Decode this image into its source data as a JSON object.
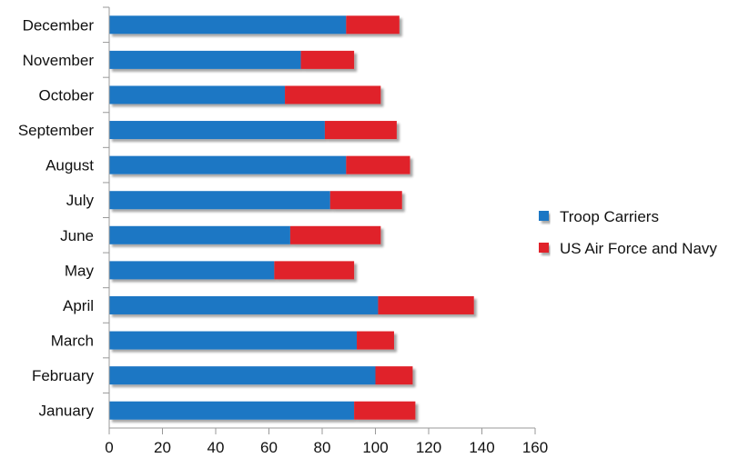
{
  "chart_data": {
    "type": "bar",
    "orientation": "horizontal",
    "stacked": true,
    "categories": [
      "January",
      "February",
      "March",
      "April",
      "May",
      "June",
      "July",
      "August",
      "September",
      "October",
      "November",
      "December"
    ],
    "series": [
      {
        "name": "Troop Carriers",
        "color": "#1f77c4",
        "values": [
          92,
          100,
          93,
          101,
          62,
          68,
          83,
          89,
          81,
          66,
          72,
          89
        ]
      },
      {
        "name": "US Air Force and Navy",
        "color": "#e0242b",
        "values": [
          23,
          14,
          14,
          36,
          30,
          34,
          27,
          24,
          27,
          36,
          20,
          20
        ]
      }
    ],
    "xlim": [
      0,
      160
    ],
    "xticks": [
      "0",
      "20",
      "40",
      "60",
      "80",
      "100",
      "120",
      "140",
      "160"
    ],
    "title": "",
    "xlabel": "",
    "ylabel": "",
    "grid": false,
    "legend_position": "right"
  }
}
